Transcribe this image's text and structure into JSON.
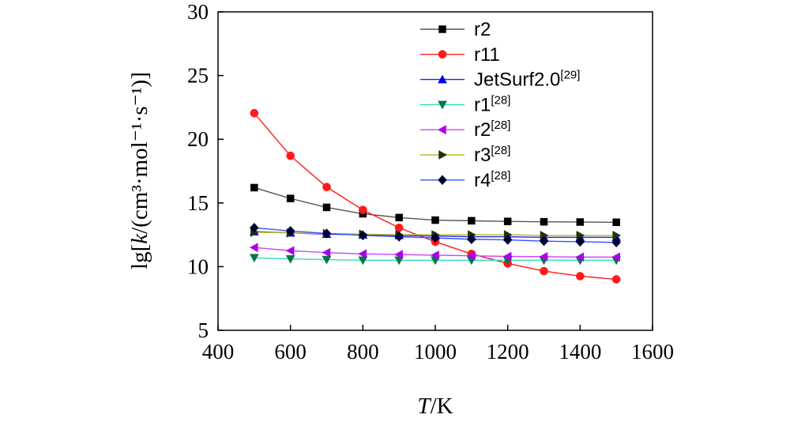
{
  "chart_data": {
    "type": "line",
    "xlabel_var": "T",
    "xlabel_unit": "/K",
    "ylabel_pre": "lg[",
    "ylabel_var": "k",
    "ylabel_unit": "/(cm³·mol⁻¹·s⁻¹)]",
    "xlim": [
      400,
      1600
    ],
    "ylim": [
      5,
      30
    ],
    "xticks": [
      400,
      600,
      800,
      1000,
      1200,
      1400,
      1600
    ],
    "yticks": [
      5,
      10,
      15,
      20,
      25,
      30
    ],
    "x": [
      500,
      600,
      700,
      800,
      900,
      1000,
      1100,
      1200,
      1300,
      1400,
      1500
    ],
    "series": [
      {
        "name": "r2",
        "sup": "",
        "color": "#000000",
        "line_color": "#555555",
        "marker": "square",
        "values": [
          16.2,
          15.35,
          14.65,
          14.15,
          13.85,
          13.65,
          13.6,
          13.55,
          13.52,
          13.5,
          13.48
        ]
      },
      {
        "name": "r11",
        "sup": "",
        "color": "#ff1a1a",
        "line_color": "#ff1a1a",
        "marker": "circle",
        "values": [
          22.05,
          18.7,
          16.25,
          14.45,
          13.05,
          11.95,
          11.0,
          10.25,
          9.65,
          9.25,
          9.0
        ]
      },
      {
        "name": "JetSurf2.0",
        "sup": "[29]",
        "color": "#0000ee",
        "line_color": "#2222ee",
        "marker": "triangle-up",
        "values": [
          12.75,
          12.65,
          12.55,
          12.5,
          12.45,
          12.4,
          12.35,
          12.35,
          12.3,
          12.3,
          12.3
        ]
      },
      {
        "name": "r1",
        "sup": "[28]",
        "color": "#007744",
        "line_color": "#33ddbb",
        "marker": "triangle-down",
        "values": [
          10.7,
          10.6,
          10.55,
          10.5,
          10.5,
          10.5,
          10.5,
          10.5,
          10.5,
          10.5,
          10.5
        ]
      },
      {
        "name": "r2",
        "sup": "[28]",
        "color": "#aa00ee",
        "line_color": "#cc44ff",
        "marker": "triangle-left",
        "values": [
          11.5,
          11.25,
          11.1,
          11.0,
          10.95,
          10.9,
          10.85,
          10.8,
          10.78,
          10.75,
          10.75
        ]
      },
      {
        "name": "r3",
        "sup": "[28]",
        "color": "#223300",
        "line_color": "#bbbb22",
        "marker": "triangle-right",
        "values": [
          12.7,
          12.65,
          12.6,
          12.55,
          12.5,
          12.5,
          12.5,
          12.5,
          12.45,
          12.45,
          12.45
        ]
      },
      {
        "name": "r4",
        "sup": "[28]",
        "color": "#000033",
        "line_color": "#3355ff",
        "marker": "diamond",
        "values": [
          13.05,
          12.8,
          12.6,
          12.45,
          12.35,
          12.25,
          12.15,
          12.1,
          12.0,
          11.95,
          11.9
        ]
      }
    ]
  }
}
